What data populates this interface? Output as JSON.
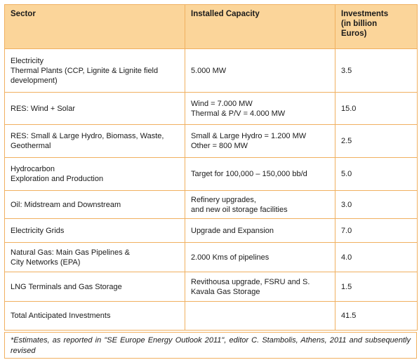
{
  "table": {
    "headers": {
      "sector": "Sector",
      "capacity": "Installed Capacity",
      "investments": [
        "Investments",
        "(in billion",
        "Euros)"
      ]
    },
    "rows": [
      {
        "sector": [
          "Electricity",
          "Thermal Plants (CCP, Lignite & Lignite field development)"
        ],
        "capacity": [
          "5.000 MW"
        ],
        "investment": "3.5"
      },
      {
        "sector": [
          "RES: Wind + Solar"
        ],
        "capacity": [
          "Wind =  7.000 MW",
          "Thermal & P/V =  4.000 MW"
        ],
        "investment": "15.0"
      },
      {
        "sector": [
          "RES: Small & Large Hydro, Biomass, Waste, Geothermal"
        ],
        "capacity": [
          "Small & Large Hydro = 1.200 MW",
          "Other =  800 MW"
        ],
        "investment": "2.5"
      },
      {
        "sector": [
          "Hydrocarbon",
          "Exploration and Production"
        ],
        "capacity": [
          "Target for 100,000 – 150,000 bb/d"
        ],
        "investment": "5.0"
      },
      {
        "sector": [
          "Oil: Midstream and Downstream"
        ],
        "capacity": [
          "Refinery upgrades,",
          "and new oil storage facilities"
        ],
        "investment": "3.0"
      },
      {
        "sector": [
          "Electricity Grids"
        ],
        "capacity": [
          "Upgrade and Expansion"
        ],
        "investment": "7.0"
      },
      {
        "sector": [
          "Natural Gas: Main Gas Pipelines &",
          "City Networks (EPA)"
        ],
        "capacity": [
          "2.000 Kms of pipelines"
        ],
        "investment": "4.0"
      },
      {
        "sector": [
          "LNG Terminals and Gas Storage"
        ],
        "capacity": [
          "Revithousa upgrade, FSRU and S. Kavala Gas Storage"
        ],
        "investment": "1.5"
      },
      {
        "sector": [
          "Total Anticipated  Investments"
        ],
        "capacity": [],
        "investment": "41.5"
      }
    ]
  },
  "footnote": "*Estimates, as reported in \"SE Europe Energy Outlook 2011\", editor C. Stambolis, Athens, 2011 and subsequently revised"
}
